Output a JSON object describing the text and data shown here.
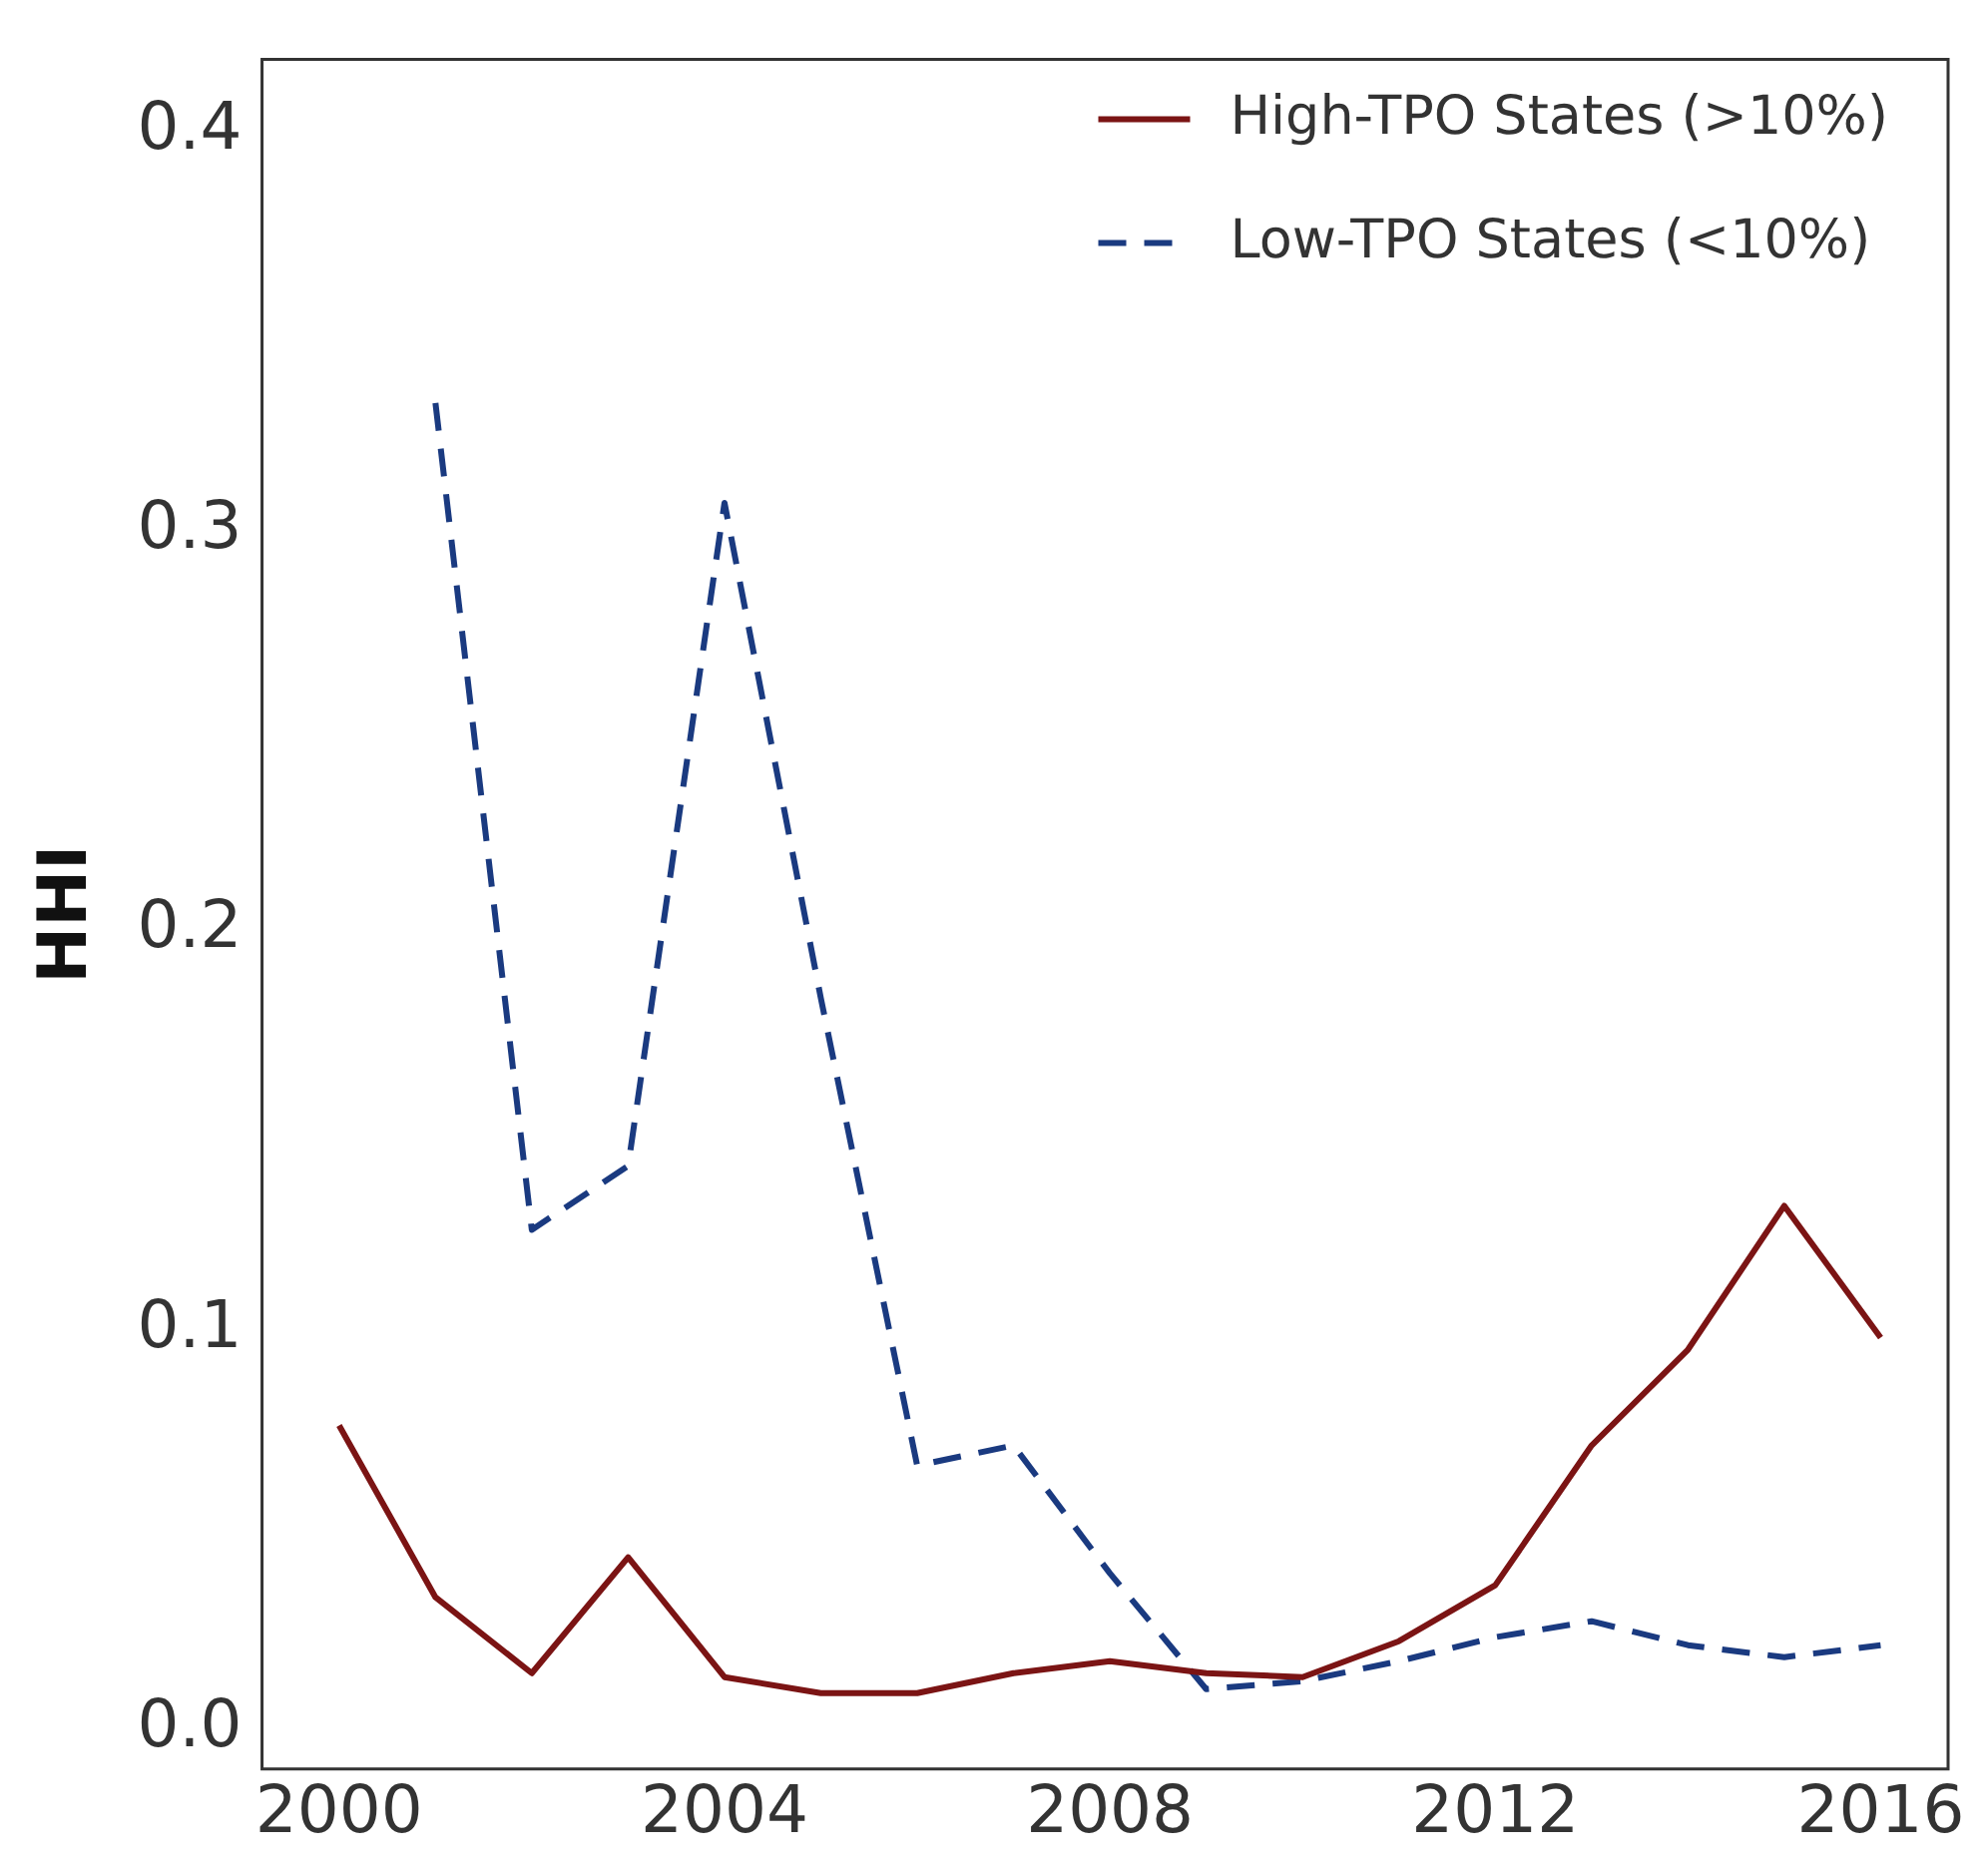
{
  "chart_data": {
    "type": "line",
    "ylabel": "HHI",
    "xlim": [
      1999.2,
      2016.7
    ],
    "xticks": [
      2000,
      2004,
      2008,
      2012,
      2016
    ],
    "ylim": [
      -0.01,
      0.418
    ],
    "yticks": [
      {
        "value": 0,
        "label": "0.0"
      },
      0.1,
      0.2,
      0.3,
      0.4
    ],
    "grid": false,
    "legend": "top right",
    "marker": "none",
    "series": [
      {
        "name": "High-TPO States (>10%)",
        "color": "#7b1414",
        "line_style": "solid",
        "x": [
          2000,
          2001,
          2002,
          2003,
          2004,
          2005,
          2006,
          2007,
          2008,
          2009,
          2010,
          2011,
          2012,
          2013,
          2014,
          2015,
          2016
        ],
        "values": [
          0.076,
          0.033,
          0.014,
          0.043,
          0.013,
          0.009,
          0.009,
          0.014,
          0.017,
          0.014,
          0.013,
          0.022,
          0.036,
          0.071,
          0.095,
          0.131,
          0.098
        ]
      },
      {
        "name": "Low-TPO States (<10%)",
        "color": "#1a3a80",
        "line_style": "dashed",
        "x": [
          2001,
          2002,
          2003,
          2004,
          2005,
          2006,
          2007,
          2008,
          2009,
          2010,
          2011,
          2012,
          2013,
          2014,
          2015,
          2016
        ],
        "values": [
          0.332,
          0.125,
          0.141,
          0.307,
          0.183,
          0.066,
          0.071,
          0.039,
          0.01,
          0.012,
          0.017,
          0.023,
          0.027,
          0.021,
          0.018,
          0.021
        ]
      }
    ]
  }
}
